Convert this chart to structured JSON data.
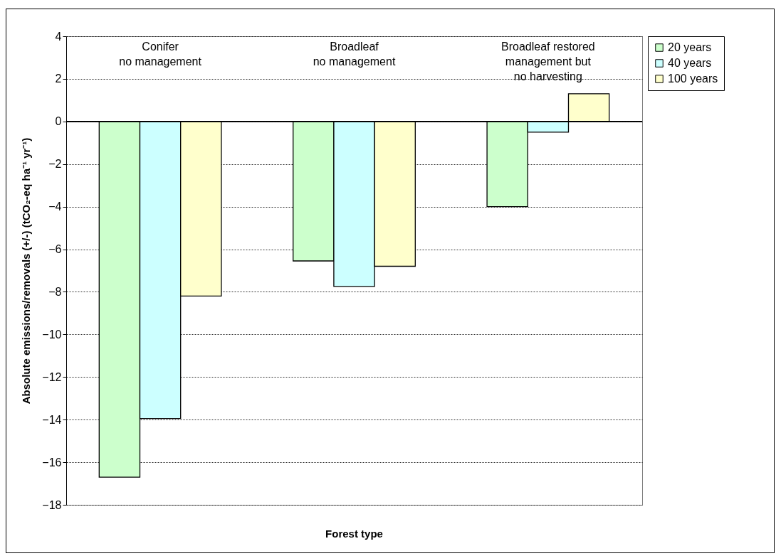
{
  "chart_data": {
    "type": "bar",
    "categories": [
      "Conifer\nno management",
      "Broadleaf\nno management",
      "Broadleaf restored\nmanagement but\nno harvesting"
    ],
    "series": [
      {
        "name": "20 years",
        "color": "#ccffcc",
        "values": [
          -16.7,
          -6.55,
          -4.0
        ]
      },
      {
        "name": "40 years",
        "color": "#ccffff",
        "values": [
          -13.95,
          -7.75,
          -0.5
        ]
      },
      {
        "name": "100 years",
        "color": "#ffffcc",
        "values": [
          -8.2,
          -6.8,
          1.3
        ]
      }
    ],
    "xlabel": "Forest type",
    "ylabel": "Absolute emissions/removals (+/-) (tCO₂-eq ha⁻¹ yr⁻¹)",
    "ylim": [
      -18,
      4
    ],
    "yticks": [
      -18,
      -16,
      -14,
      -12,
      -10,
      -8,
      -6,
      -4,
      -2,
      0,
      2,
      4
    ],
    "grid": "y",
    "legend": "right"
  }
}
